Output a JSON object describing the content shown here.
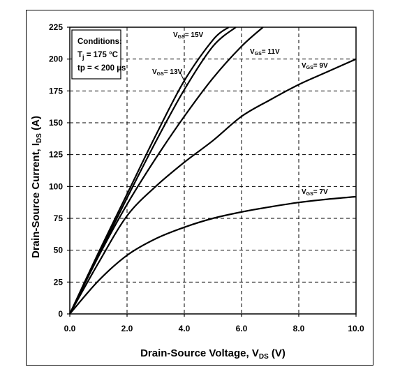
{
  "chart_data": {
    "type": "line",
    "xlabel": {
      "main": "Drain-Source Voltage, V",
      "sub": "DS",
      "unit": " (V)"
    },
    "ylabel": {
      "main": "Drain-Source Current, I",
      "sub": "DS",
      "unit": " (A)"
    },
    "xlim": [
      0,
      10
    ],
    "ylim": [
      0,
      225
    ],
    "x_ticks": [
      "0.0",
      "2.0",
      "4.0",
      "6.0",
      "8.0",
      "10.0"
    ],
    "x_tick_values": [
      0,
      2,
      4,
      6,
      8,
      10
    ],
    "y_ticks": [
      "0",
      "25",
      "50",
      "75",
      "100",
      "125",
      "150",
      "175",
      "200",
      "225"
    ],
    "y_tick_values": [
      0,
      25,
      50,
      75,
      100,
      125,
      150,
      175,
      200,
      225
    ],
    "grid": true,
    "grid_style": "dashed",
    "conditions": {
      "title": "Conditions:",
      "line1_main": "T",
      "line1_sub": "j",
      "line1_rest": " = 175 °C",
      "line2": "tp = < 200 µs"
    },
    "series": [
      {
        "name": "VGS = 15V",
        "label_main": "V",
        "label_sub": "GS",
        "label_rest": "= 15V",
        "x": [
          0,
          1,
          2,
          3,
          4,
          5,
          5.55
        ],
        "y": [
          0,
          48,
          94,
          140,
          183,
          215,
          225
        ]
      },
      {
        "name": "VGS = 13V",
        "label_main": "V",
        "label_sub": "GS",
        "label_rest": "= 13V",
        "x": [
          0,
          1,
          2,
          3,
          4,
          5,
          5.8
        ],
        "y": [
          0,
          46,
          91,
          135,
          176,
          210,
          225
        ]
      },
      {
        "name": "VGS = 11V",
        "label_main": "V",
        "label_sub": "GS",
        "label_rest": "= 11V",
        "x": [
          0,
          1,
          2,
          3,
          4,
          5,
          6,
          6.75
        ],
        "y": [
          0,
          45,
          86,
          122,
          155,
          185,
          210,
          225
        ]
      },
      {
        "name": "VGS = 9V",
        "label_main": "V",
        "label_sub": "GS",
        "label_rest": "= 9V",
        "x": [
          0,
          1,
          2,
          3,
          4,
          5,
          6,
          7,
          8,
          9,
          10
        ],
        "y": [
          0,
          40,
          77,
          100,
          119,
          136,
          155,
          168,
          180,
          190,
          200
        ]
      },
      {
        "name": "VGS = 7V",
        "label_main": "V",
        "label_sub": "GS",
        "label_rest": "= 7V",
        "x": [
          0,
          1,
          2,
          3,
          4,
          5,
          6,
          7,
          8,
          9,
          10
        ],
        "y": [
          0,
          26,
          46,
          59,
          68,
          75,
          80,
          84,
          87.5,
          90,
          92
        ]
      }
    ]
  }
}
